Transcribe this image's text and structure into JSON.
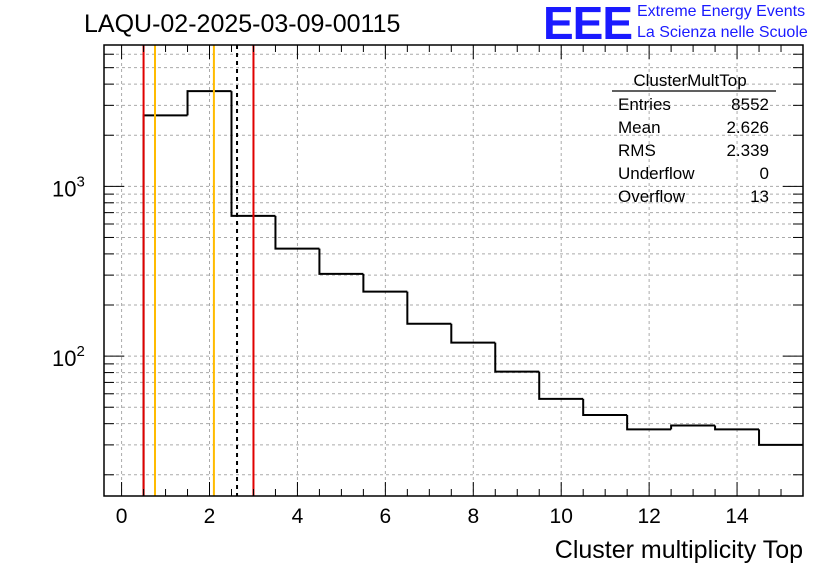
{
  "header": {
    "run_title": "LAQU-02-2025-03-09-00115",
    "logo_text": "EEE",
    "tagline_1": "Extreme Energy Events",
    "tagline_2": "La Scienza nelle Scuole"
  },
  "stats_box": {
    "title": "ClusterMultTop",
    "rows": [
      {
        "label": "Entries",
        "value": "8552"
      },
      {
        "label": "Mean",
        "value": "2.626"
      },
      {
        "label": "RMS",
        "value": "2.339"
      },
      {
        "label": "Underflow",
        "value": "0"
      },
      {
        "label": "Overflow",
        "value": "13"
      }
    ]
  },
  "colors": {
    "histogram": "#000000",
    "red_line": "#e00000",
    "orange_line": "#ffbb00",
    "mean_line": "#000000",
    "grid": "#aaaaaa",
    "logo": "#1a1aff"
  },
  "chart_data": {
    "type": "histogram",
    "xlabel": "Cluster multiplicity Top",
    "ylabel": "",
    "yscale": "log",
    "xlim": [
      -0.4,
      15.5
    ],
    "ylim": [
      15,
      6800
    ],
    "x_ticks": [
      "0",
      "2",
      "4",
      "6",
      "8",
      "10",
      "12",
      "14"
    ],
    "y_tick_labels": [
      {
        "base": "10",
        "exp": "2",
        "value": 100
      },
      {
        "base": "10",
        "exp": "3",
        "value": 1000
      }
    ],
    "bins": [
      {
        "low": 0.5,
        "high": 1.5,
        "count": 2620
      },
      {
        "low": 1.5,
        "high": 2.5,
        "count": 3640
      },
      {
        "low": 2.5,
        "high": 3.5,
        "count": 670
      },
      {
        "low": 3.5,
        "high": 4.5,
        "count": 430
      },
      {
        "low": 4.5,
        "high": 5.5,
        "count": 305
      },
      {
        "low": 5.5,
        "high": 6.5,
        "count": 240
      },
      {
        "low": 6.5,
        "high": 7.5,
        "count": 155
      },
      {
        "low": 7.5,
        "high": 8.5,
        "count": 120
      },
      {
        "low": 8.5,
        "high": 9.5,
        "count": 81
      },
      {
        "low": 9.5,
        "high": 10.5,
        "count": 56
      },
      {
        "low": 10.5,
        "high": 11.5,
        "count": 45
      },
      {
        "low": 11.5,
        "high": 12.5,
        "count": 37
      },
      {
        "low": 12.5,
        "high": 13.5,
        "count": 39
      },
      {
        "low": 13.5,
        "high": 14.5,
        "count": 37
      },
      {
        "low": 14.5,
        "high": 15.5,
        "count": 30
      }
    ],
    "vertical_lines": [
      {
        "x": 0.5,
        "color": "red",
        "style": "solid"
      },
      {
        "x": 0.76,
        "color": "orange",
        "style": "solid"
      },
      {
        "x": 2.1,
        "color": "orange",
        "style": "solid"
      },
      {
        "x": 2.626,
        "color": "black",
        "style": "dashed",
        "label": "mean"
      },
      {
        "x": 3.0,
        "color": "red",
        "style": "solid"
      }
    ]
  }
}
